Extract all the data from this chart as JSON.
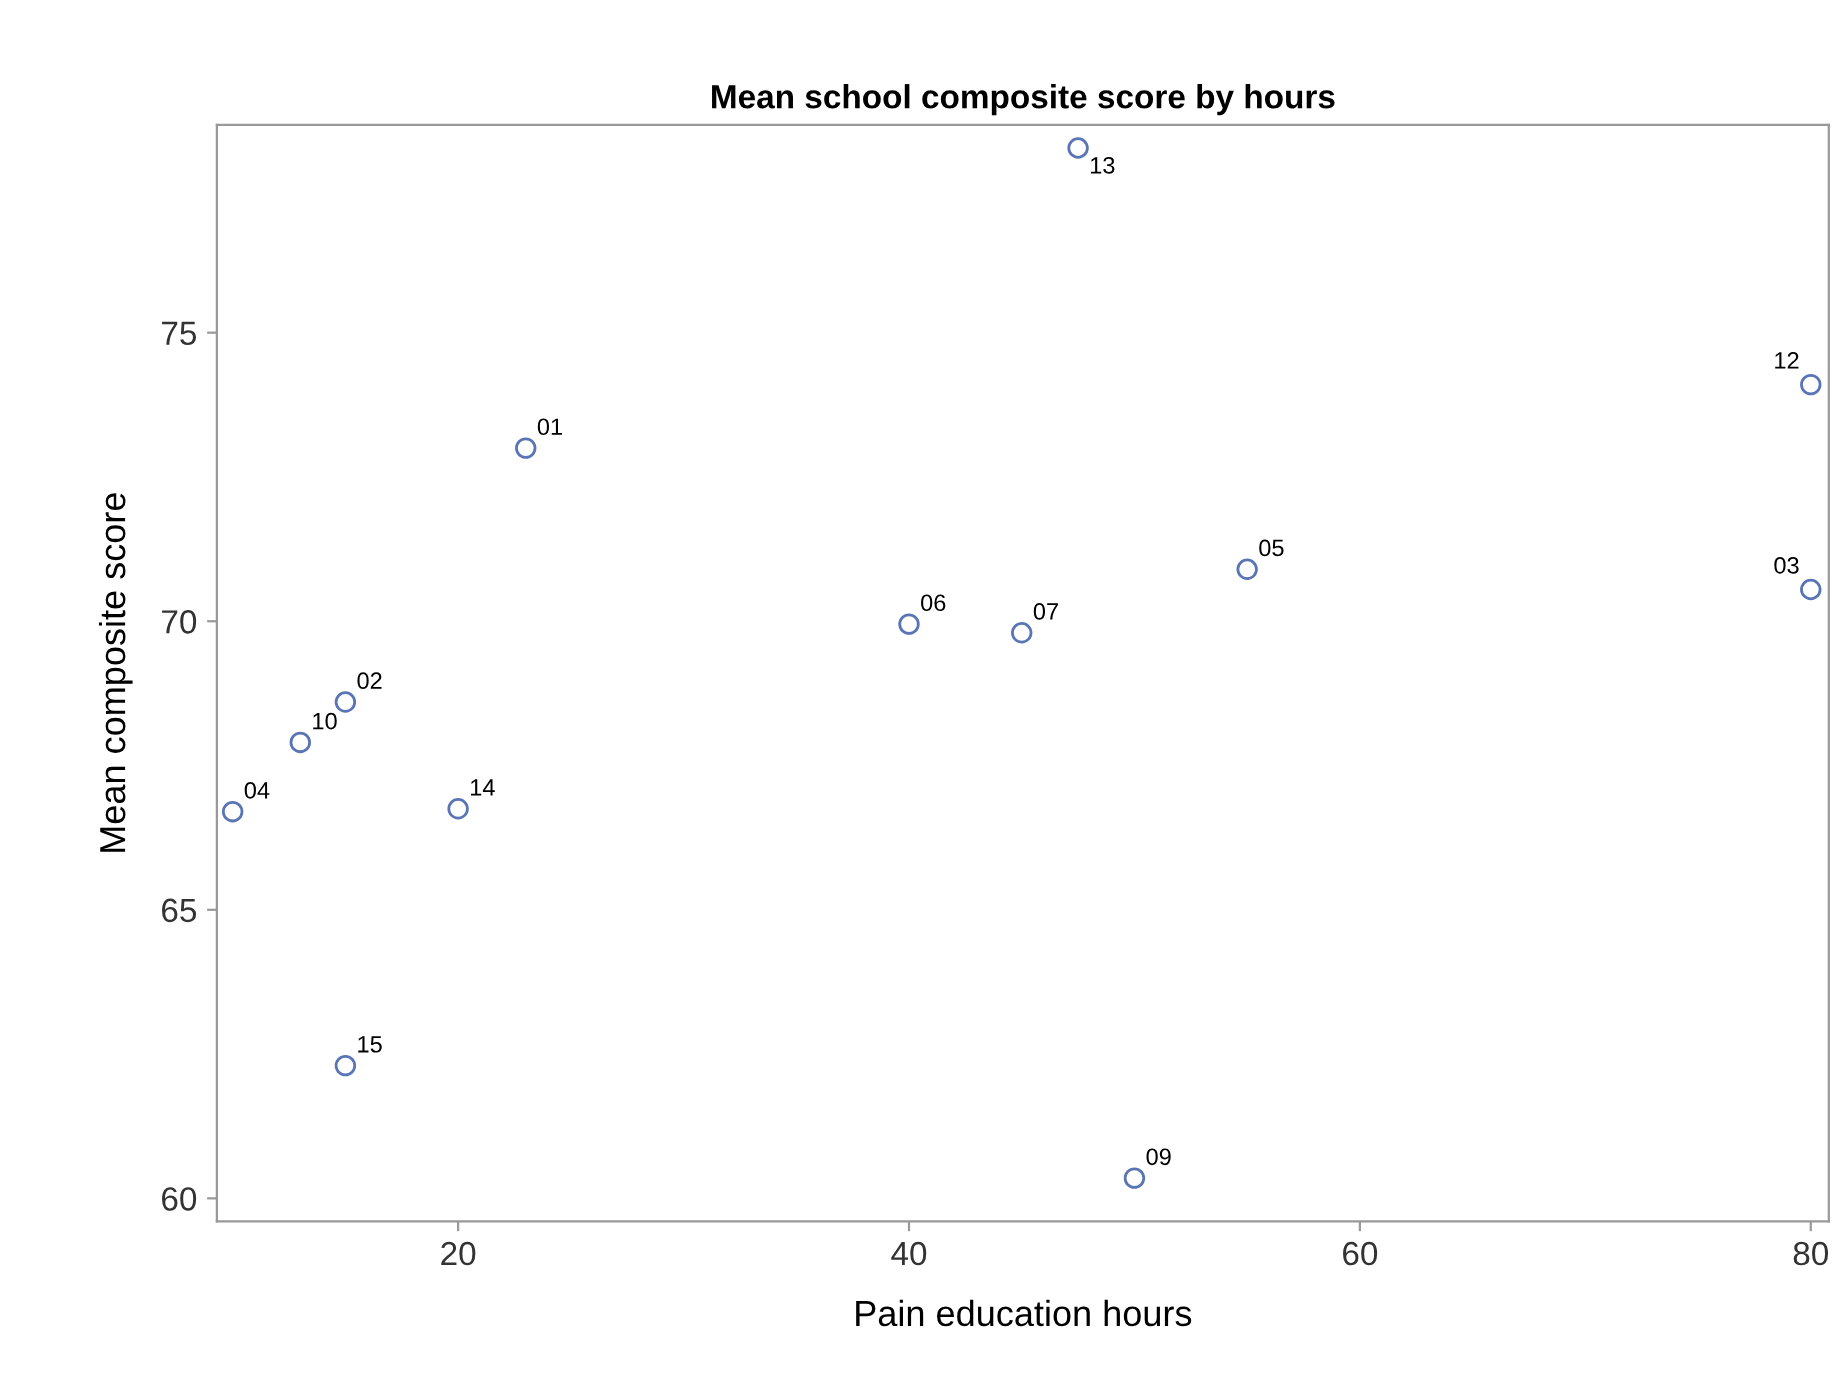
{
  "chart_data": {
    "type": "scatter",
    "title": "Mean school composite score by hours",
    "xlabel": "Pain education hours",
    "ylabel": "Mean composite score",
    "x": [
      23,
      15,
      80,
      10,
      55,
      40,
      45,
      50,
      13,
      80,
      47.5,
      20,
      15
    ],
    "series": [
      {
        "color": "#5a75b5",
        "values": [
          73.0,
          68.6,
          70.55,
          66.7,
          70.9,
          69.95,
          69.8,
          60.35,
          67.9,
          74.1,
          78.2,
          66.75,
          62.3
        ]
      }
    ],
    "annotations": [
      {
        "text": "01",
        "x": 23,
        "y": 73.0
      },
      {
        "text": "02",
        "x": 15,
        "y": 68.6
      },
      {
        "text": "03",
        "x": 80,
        "y": 70.55
      },
      {
        "text": "04",
        "x": 10,
        "y": 66.7
      },
      {
        "text": "05",
        "x": 55,
        "y": 70.9
      },
      {
        "text": "06",
        "x": 40,
        "y": 69.95
      },
      {
        "text": "07",
        "x": 45,
        "y": 69.8
      },
      {
        "text": "09",
        "x": 50,
        "y": 60.35
      },
      {
        "text": "10",
        "x": 13,
        "y": 67.9
      },
      {
        "text": "12",
        "x": 80,
        "y": 74.1
      },
      {
        "text": "13",
        "x": 47.5,
        "y": 78.2
      },
      {
        "text": "14",
        "x": 20,
        "y": 66.75
      },
      {
        "text": "15",
        "x": 15,
        "y": 62.3
      }
    ],
    "xlim": [
      9.3,
      80.8
    ],
    "xticks": [
      20,
      40,
      60,
      80
    ],
    "ylim": [
      59.6,
      78.6
    ],
    "yticks": [
      60,
      65,
      70,
      75
    ],
    "marker": "circle",
    "grid": false
  }
}
